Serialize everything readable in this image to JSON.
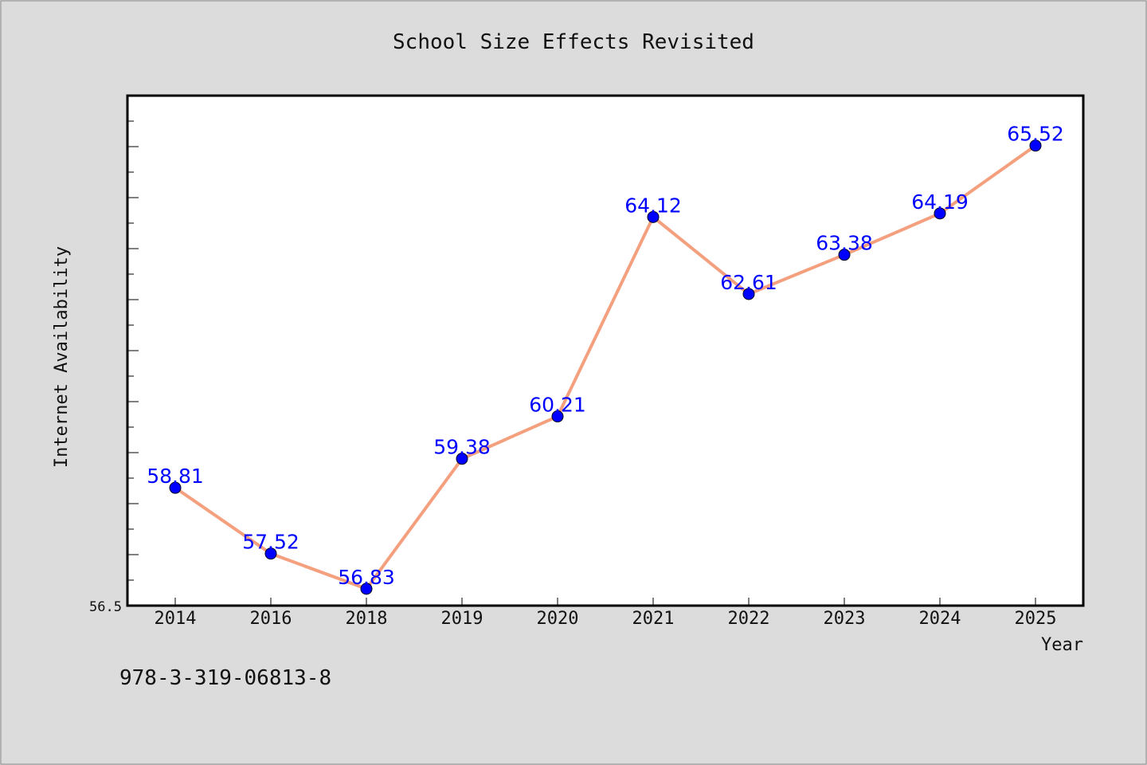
{
  "chart_data": {
    "type": "line",
    "title": "School Size Effects Revisited",
    "xlabel": "Year",
    "ylabel": "Internet Availability",
    "categories": [
      "2014",
      "2016",
      "2018",
      "2019",
      "2020",
      "2021",
      "2022",
      "2023",
      "2024",
      "2025"
    ],
    "series": [
      {
        "values": [
          58.81,
          57.52,
          56.83,
          59.38,
          60.21,
          64.12,
          62.61,
          63.38,
          64.19,
          65.52
        ]
      }
    ],
    "ylim": [
      56.5,
      66.5
    ],
    "ytick_labels": [
      "56.5"
    ],
    "grid": false,
    "data_labels": true,
    "colors": {
      "line": "#f4a07e",
      "marker": "#0000ff",
      "label": "#0000ff",
      "plot_bg": "#ffffff",
      "page_bg": "#dcdcdc"
    }
  },
  "footer_note": "978-3-319-06813-8"
}
